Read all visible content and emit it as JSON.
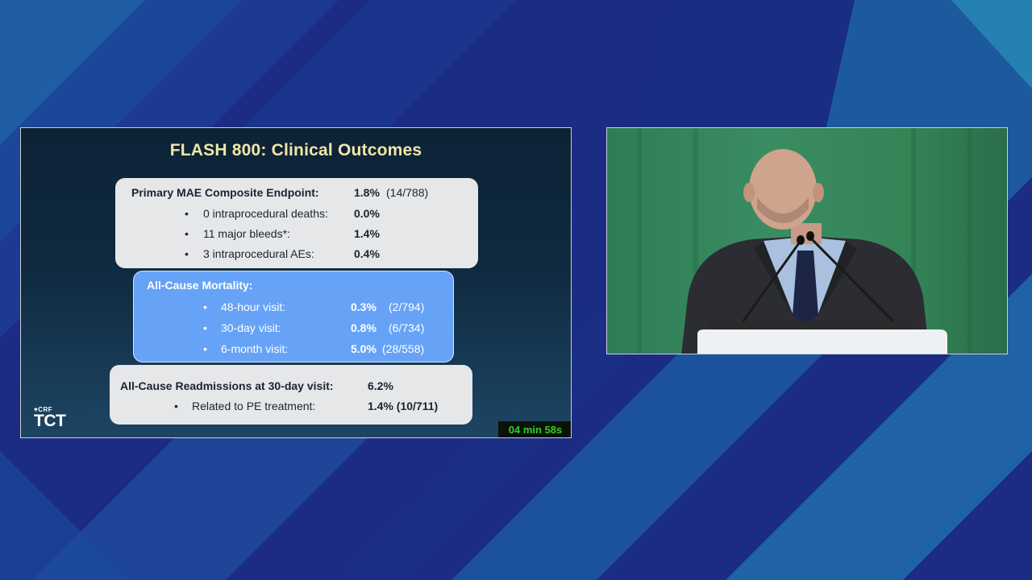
{
  "slide": {
    "title": "FLASH 800: Clinical Outcomes",
    "primary": {
      "header_label": "Primary MAE Composite Endpoint:",
      "header_value": "1.8%",
      "header_count": "(14/788)",
      "items": [
        {
          "label": "0 intraprocedural deaths:",
          "value": "0.0%"
        },
        {
          "label": "11 major bleeds*:",
          "value": "1.4%"
        },
        {
          "label": "3 intraprocedural AEs:",
          "value": "0.4%"
        }
      ]
    },
    "mortality": {
      "header_label": "All-Cause Mortality:",
      "items": [
        {
          "label": "48-hour visit:",
          "value": "0.3%",
          "count": "(2/794)"
        },
        {
          "label": "30-day visit:",
          "value": "0.8%",
          "count": "(6/734)"
        },
        {
          "label": "6-month visit:",
          "value": "5.0%",
          "count": "(28/558)"
        }
      ]
    },
    "readmissions": {
      "header_label": "All-Cause Readmissions at 30-day visit:",
      "header_value": "6.2%",
      "items": [
        {
          "label": "Related to PE treatment:",
          "value": "1.4% (10/711)"
        }
      ]
    },
    "bullet_char": "•",
    "logo": {
      "crf": "CRF",
      "tct": "TCT"
    },
    "timer": "04 min 58s"
  },
  "colors": {
    "title": "#f1e7a6",
    "blue_box": "#66a3f7",
    "grey_box": "#e6e7e9",
    "timer_text": "#2ed12a"
  }
}
